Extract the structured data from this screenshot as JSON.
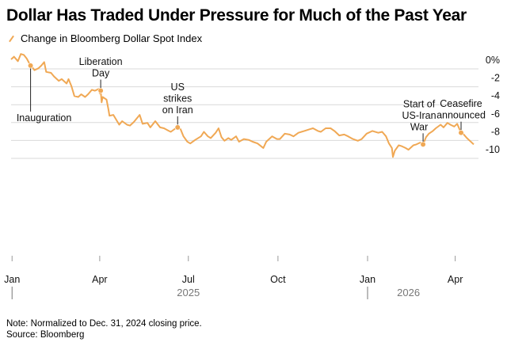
{
  "chart_data": {
    "type": "line",
    "title": "Dollar Has Traded Under Pressure for Much of the Past Year",
    "legend": [
      {
        "name": "Change in Bloomberg Dollar Spot Index",
        "color": "#f0a854"
      }
    ],
    "legend_position": "top-left",
    "grid": true,
    "ylim": [
      -11,
      0.6
    ],
    "y_ticks": [
      0,
      -2,
      -4,
      -6,
      -8,
      -10
    ],
    "y_tick_labels": [
      "0%",
      "-2",
      "-4",
      "-6",
      "-8",
      "-10"
    ],
    "x_range": [
      "2024-12-31",
      "2026-04-20"
    ],
    "x_ticks": [
      {
        "date": "2025-01-01",
        "label": "Jan"
      },
      {
        "date": "2025-04-01",
        "label": "Apr"
      },
      {
        "date": "2025-07-01",
        "label": "Jul"
      },
      {
        "date": "2025-10-01",
        "label": "Oct"
      },
      {
        "date": "2026-01-01",
        "label": "Jan"
      },
      {
        "date": "2026-04-01",
        "label": "Apr"
      }
    ],
    "year_labels": [
      {
        "date": "2025-07-01",
        "label": "2025"
      },
      {
        "date": "2026-02-12",
        "label": "2026"
      }
    ],
    "series": [
      {
        "name": "Change in Bloomberg Dollar Spot Index",
        "color": "#f0a854",
        "points": [
          [
            "2024-12-31",
            0
          ],
          [
            "2025-01-03",
            0.3
          ],
          [
            "2025-01-07",
            -0.2
          ],
          [
            "2025-01-10",
            0.6
          ],
          [
            "2025-01-13",
            0.5
          ],
          [
            "2025-01-16",
            0.1
          ],
          [
            "2025-01-20",
            -0.7
          ],
          [
            "2025-01-22",
            -0.9
          ],
          [
            "2025-01-24",
            -1.2
          ],
          [
            "2025-01-28",
            -1.0
          ],
          [
            "2025-01-31",
            -0.7
          ],
          [
            "2025-02-03",
            -0.3
          ],
          [
            "2025-02-05",
            -1.4
          ],
          [
            "2025-02-10",
            -1.5
          ],
          [
            "2025-02-13",
            -1.9
          ],
          [
            "2025-02-18",
            -2.4
          ],
          [
            "2025-02-21",
            -2.2
          ],
          [
            "2025-02-26",
            -2.7
          ],
          [
            "2025-02-28",
            -2.2
          ],
          [
            "2025-03-03",
            -3.0
          ],
          [
            "2025-03-06",
            -4.1
          ],
          [
            "2025-03-10",
            -4.2
          ],
          [
            "2025-03-13",
            -3.9
          ],
          [
            "2025-03-17",
            -4.2
          ],
          [
            "2025-03-20",
            -3.9
          ],
          [
            "2025-03-24",
            -3.4
          ],
          [
            "2025-03-27",
            -3.5
          ],
          [
            "2025-03-31",
            -3.3
          ],
          [
            "2025-04-01",
            -3.8
          ],
          [
            "2025-04-02",
            -3.5
          ],
          [
            "2025-04-03",
            -4.8
          ],
          [
            "2025-04-04",
            -4.2
          ],
          [
            "2025-04-08",
            -4.5
          ],
          [
            "2025-04-10",
            -5.6
          ],
          [
            "2025-04-11",
            -6.3
          ],
          [
            "2025-04-15",
            -6.2
          ],
          [
            "2025-04-21",
            -7.3
          ],
          [
            "2025-04-24",
            -6.9
          ],
          [
            "2025-04-29",
            -7.3
          ],
          [
            "2025-05-02",
            -7.4
          ],
          [
            "2025-05-06",
            -7.0
          ],
          [
            "2025-05-12",
            -6.2
          ],
          [
            "2025-05-15",
            -7.2
          ],
          [
            "2025-05-20",
            -7.1
          ],
          [
            "2025-05-23",
            -7.6
          ],
          [
            "2025-05-28",
            -6.9
          ],
          [
            "2025-06-02",
            -7.6
          ],
          [
            "2025-06-06",
            -7.7
          ],
          [
            "2025-06-11",
            -8.0
          ],
          [
            "2025-06-13",
            -8.1
          ],
          [
            "2025-06-18",
            -7.7
          ],
          [
            "2025-06-20",
            -7.6
          ],
          [
            "2025-06-23",
            -7.8
          ],
          [
            "2025-06-26",
            -8.6
          ],
          [
            "2025-06-30",
            -9.2
          ],
          [
            "2025-07-03",
            -9.4
          ],
          [
            "2025-07-08",
            -9.0
          ],
          [
            "2025-07-14",
            -8.6
          ],
          [
            "2025-07-17",
            -8.1
          ],
          [
            "2025-07-21",
            -8.6
          ],
          [
            "2025-07-24",
            -8.8
          ],
          [
            "2025-07-29",
            -8.2
          ],
          [
            "2025-08-01",
            -7.7
          ],
          [
            "2025-08-04",
            -8.7
          ],
          [
            "2025-08-07",
            -9.1
          ],
          [
            "2025-08-11",
            -8.8
          ],
          [
            "2025-08-14",
            -9.0
          ],
          [
            "2025-08-19",
            -8.6
          ],
          [
            "2025-08-22",
            -9.2
          ],
          [
            "2025-08-27",
            -8.9
          ],
          [
            "2025-09-01",
            -9.0
          ],
          [
            "2025-09-05",
            -9.2
          ],
          [
            "2025-09-10",
            -9.4
          ],
          [
            "2025-09-16",
            -9.9
          ],
          [
            "2025-09-19",
            -9.2
          ],
          [
            "2025-09-25",
            -8.6
          ],
          [
            "2025-09-30",
            -8.9
          ],
          [
            "2025-10-03",
            -8.9
          ],
          [
            "2025-10-08",
            -8.3
          ],
          [
            "2025-10-13",
            -8.4
          ],
          [
            "2025-10-17",
            -8.6
          ],
          [
            "2025-10-22",
            -8.2
          ],
          [
            "2025-10-28",
            -8.0
          ],
          [
            "2025-11-03",
            -7.8
          ],
          [
            "2025-11-06",
            -7.7
          ],
          [
            "2025-11-11",
            -8.0
          ],
          [
            "2025-11-14",
            -8.1
          ],
          [
            "2025-11-19",
            -7.7
          ],
          [
            "2025-11-24",
            -7.7
          ],
          [
            "2025-11-28",
            -8.0
          ],
          [
            "2025-12-03",
            -8.5
          ],
          [
            "2025-12-08",
            -8.4
          ],
          [
            "2025-12-12",
            -8.6
          ],
          [
            "2025-12-17",
            -8.9
          ],
          [
            "2025-12-22",
            -9.1
          ],
          [
            "2025-12-26",
            -8.9
          ],
          [
            "2025-12-31",
            -8.3
          ],
          [
            "2026-01-06",
            -8.0
          ],
          [
            "2026-01-12",
            -8.2
          ],
          [
            "2026-01-16",
            -8.1
          ],
          [
            "2026-01-20",
            -8.6
          ],
          [
            "2026-01-23",
            -9.4
          ],
          [
            "2026-01-26",
            -9.9
          ],
          [
            "2026-01-27",
            -10.9
          ],
          [
            "2026-01-29",
            -10.2
          ],
          [
            "2026-02-02",
            -9.6
          ],
          [
            "2026-02-05",
            -9.7
          ],
          [
            "2026-02-09",
            -9.9
          ],
          [
            "2026-02-12",
            -10.1
          ],
          [
            "2026-02-17",
            -9.6
          ],
          [
            "2026-02-20",
            -9.5
          ],
          [
            "2026-02-24",
            -9.3
          ],
          [
            "2026-02-27",
            -9.5
          ],
          [
            "2026-03-02",
            -8.7
          ],
          [
            "2026-03-05",
            -8.3
          ],
          [
            "2026-03-09",
            -8.0
          ],
          [
            "2026-03-12",
            -7.7
          ],
          [
            "2026-03-17",
            -7.3
          ],
          [
            "2026-03-20",
            -7.6
          ],
          [
            "2026-03-24",
            -7.1
          ],
          [
            "2026-03-27",
            -7.3
          ],
          [
            "2026-03-31",
            -7.5
          ],
          [
            "2026-04-03",
            -7.2
          ],
          [
            "2026-04-07",
            -8.2
          ],
          [
            "2026-04-09",
            -8.3
          ],
          [
            "2026-04-13",
            -8.8
          ],
          [
            "2026-04-16",
            -9.1
          ],
          [
            "2026-04-20",
            -9.5
          ]
        ]
      }
    ],
    "annotations": [
      {
        "lines": [
          "Inauguration"
        ],
        "date": "2025-01-20",
        "value": -0.7,
        "label_side": "below"
      },
      {
        "lines": [
          "Liberation",
          "Day"
        ],
        "date": "2025-04-02",
        "value": -3.5,
        "label_side": "above"
      },
      {
        "lines": [
          "US",
          "strikes",
          "on Iran"
        ],
        "date": "2025-06-20",
        "value": -7.6,
        "label_side": "above"
      },
      {
        "lines": [
          "Start of",
          "US-Iran",
          "War"
        ],
        "date": "2026-02-27",
        "value": -9.5,
        "label_side": "above"
      },
      {
        "lines": [
          "Ceasefire",
          "announced"
        ],
        "date": "2026-04-07",
        "value": -8.2,
        "label_side": "above"
      }
    ]
  },
  "note": "Note: Normalized to Dec. 31, 2024 closing price.",
  "source": "Source: Bloomberg"
}
